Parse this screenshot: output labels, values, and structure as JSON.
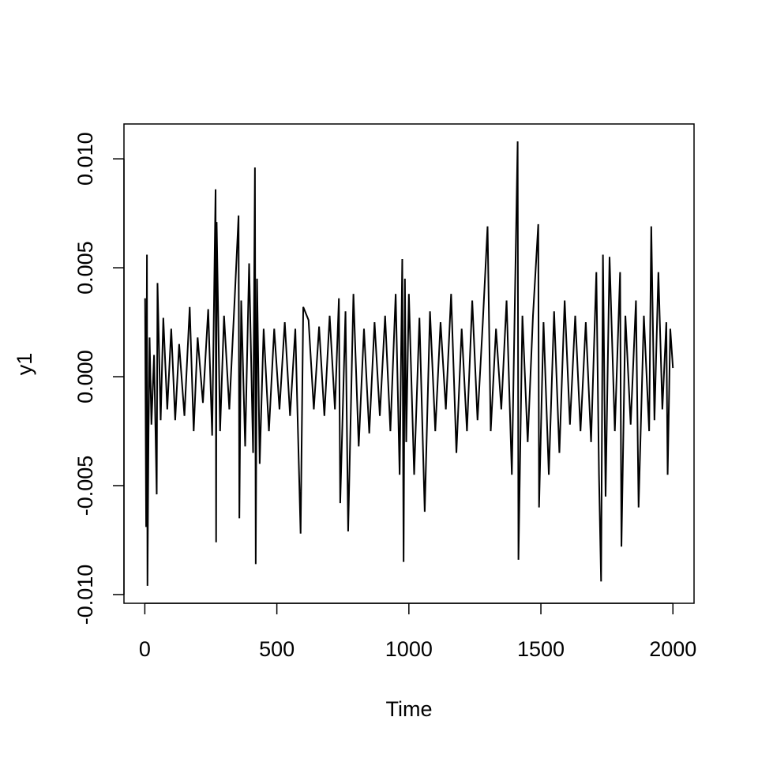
{
  "chart_data": {
    "type": "line",
    "x_label": "Time",
    "y_label": "y1",
    "color": "#000000",
    "xlim": [
      -79,
      2080
    ],
    "ylim": [
      -0.0104,
      0.0116
    ],
    "xticks": [
      0,
      500,
      1000,
      1500,
      2000
    ],
    "yticks": [
      {
        "value": -0.01,
        "label": "-0.010"
      },
      {
        "value": -0.005,
        "label": "-0.005"
      },
      {
        "value": 0,
        "label": "0.000"
      },
      0.005,
      {
        "value": 0.01,
        "label": "0.010"
      }
    ],
    "x": [
      1,
      5,
      8,
      10,
      14,
      18,
      25,
      35,
      45,
      48,
      60,
      70,
      85,
      100,
      115,
      130,
      150,
      170,
      185,
      200,
      220,
      240,
      255,
      268,
      270,
      272,
      285,
      300,
      320,
      340,
      355,
      358,
      365,
      380,
      395,
      410,
      417,
      420,
      425,
      435,
      450,
      470,
      490,
      510,
      530,
      550,
      570,
      590,
      600,
      620,
      640,
      660,
      680,
      700,
      720,
      735,
      740,
      760,
      770,
      790,
      810,
      830,
      850,
      870,
      890,
      910,
      930,
      950,
      965,
      975,
      980,
      985,
      990,
      1000,
      1020,
      1040,
      1060,
      1080,
      1100,
      1120,
      1140,
      1160,
      1180,
      1200,
      1220,
      1240,
      1260,
      1280,
      1298,
      1310,
      1330,
      1350,
      1370,
      1390,
      1412,
      1415,
      1430,
      1450,
      1470,
      1490,
      1493,
      1510,
      1530,
      1550,
      1570,
      1590,
      1610,
      1630,
      1650,
      1670,
      1690,
      1710,
      1720,
      1728,
      1735,
      1745,
      1760,
      1780,
      1800,
      1805,
      1820,
      1840,
      1860,
      1870,
      1890,
      1910,
      1918,
      1930,
      1945,
      1960,
      1975,
      1980,
      1990,
      2000
    ],
    "values": [
      0.0036,
      -0.0069,
      0.0056,
      -0.0096,
      -0.0026,
      0.0018,
      -0.0022,
      0.001,
      -0.0054,
      0.0043,
      -0.002,
      0.0027,
      -0.0015,
      0.0022,
      -0.002,
      0.0015,
      -0.0018,
      0.0032,
      -0.0025,
      0.0018,
      -0.0012,
      0.0031,
      -0.0027,
      0.0086,
      -0.0076,
      0.0071,
      -0.0025,
      0.0028,
      -0.0015,
      0.0035,
      0.0074,
      -0.0065,
      0.0035,
      -0.0032,
      0.0052,
      -0.0035,
      0.0096,
      -0.0086,
      0.0045,
      -0.004,
      0.0022,
      -0.0025,
      0.0022,
      -0.0015,
      0.0025,
      -0.0018,
      0.0022,
      -0.0072,
      0.0032,
      0.0026,
      -0.0015,
      0.0023,
      -0.0018,
      0.0028,
      -0.0015,
      0.0036,
      -0.0058,
      0.003,
      -0.0071,
      0.0038,
      -0.0032,
      0.0022,
      -0.0026,
      0.0025,
      -0.0018,
      0.0028,
      -0.0025,
      0.0038,
      -0.0045,
      0.0054,
      -0.0085,
      0.0045,
      -0.003,
      0.0038,
      -0.0045,
      0.0027,
      -0.0062,
      0.003,
      -0.0025,
      0.0025,
      -0.0015,
      0.0038,
      -0.0035,
      0.0022,
      -0.0025,
      0.0035,
      -0.002,
      0.0025,
      0.0069,
      -0.0025,
      0.0022,
      -0.0015,
      0.0035,
      -0.0045,
      0.0108,
      -0.0084,
      0.0028,
      -0.003,
      0.0028,
      0.007,
      -0.006,
      0.0025,
      -0.0045,
      0.003,
      -0.0035,
      0.0035,
      -0.0022,
      0.0028,
      -0.0025,
      0.0025,
      -0.003,
      0.0048,
      -0.0045,
      -0.0094,
      0.0056,
      -0.0055,
      0.0055,
      -0.0025,
      0.0048,
      -0.0078,
      0.0028,
      -0.0022,
      0.0035,
      -0.006,
      0.0028,
      -0.0025,
      0.0069,
      -0.002,
      0.0048,
      -0.0015,
      0.0025,
      -0.0045,
      0.0022,
      0.0004
    ]
  }
}
